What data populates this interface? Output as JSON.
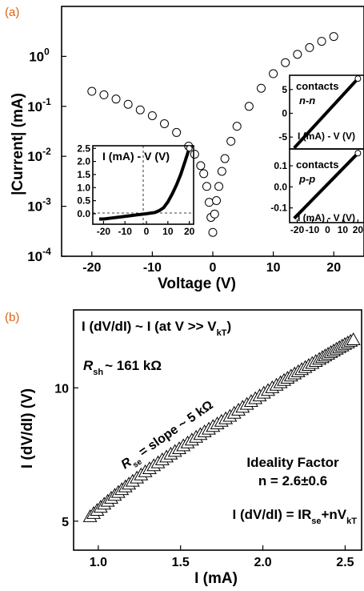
{
  "chart_data": [
    {
      "id": "a",
      "panel_label": "(a)",
      "type": "scatter",
      "title": "",
      "xlabel": "Voltage (V)",
      "ylabel": "|Current| (mA)",
      "xlim": [
        -25,
        25
      ],
      "ylim": [
        0.0001,
        10
      ],
      "yscale": "log",
      "x_ticks": [
        "-20",
        "-10",
        "0",
        "10",
        "20"
      ],
      "y_ticks": [
        {
          "base": "10",
          "exp": "0"
        },
        {
          "base": "10",
          "exp": "-1"
        },
        {
          "base": "10",
          "exp": "-2"
        },
        {
          "base": "10",
          "exp": "-3"
        },
        {
          "base": "10",
          "exp": "-4"
        }
      ],
      "marker": "open-circle",
      "series": [
        {
          "x": [
            -20,
            -18,
            -16,
            -14,
            -12,
            -10,
            -8,
            -6,
            -4,
            -3,
            -2,
            -1.5,
            -1,
            -0.6,
            -0.3,
            0,
            0.3,
            0.6,
            1,
            1.5,
            2,
            3,
            4,
            6,
            8,
            10,
            12,
            14,
            16,
            18,
            20
          ],
          "y": [
            0.2,
            0.17,
            0.14,
            0.11,
            0.085,
            0.065,
            0.045,
            0.03,
            0.016,
            0.011,
            0.0065,
            0.0045,
            0.0025,
            0.0012,
            0.0006,
            0.0003,
            0.0007,
            0.0013,
            0.0025,
            0.005,
            0.009,
            0.02,
            0.04,
            0.1,
            0.23,
            0.45,
            0.75,
            1.1,
            1.5,
            2.0,
            2.5
          ]
        }
      ]
    },
    {
      "id": "a-inset-main",
      "type": "line",
      "annotation": "I (mA) - V (V)",
      "xlim": [
        -25,
        22
      ],
      "ylim": [
        -0.4,
        2.6
      ],
      "x_ticks": [
        "-20",
        "-10",
        "0",
        "10",
        "20"
      ],
      "y_ticks": [
        "2.5",
        "2.0",
        "1.5",
        "1.0",
        "0.5",
        "0.0"
      ],
      "series": [
        {
          "x": [
            -22,
            -20,
            -16,
            -12,
            -8,
            -4,
            0,
            4,
            6,
            8,
            10,
            12,
            14,
            16,
            18,
            20
          ],
          "y": [
            -0.2,
            -0.2,
            -0.16,
            -0.12,
            -0.08,
            -0.04,
            0.0,
            0.05,
            0.12,
            0.23,
            0.45,
            0.75,
            1.1,
            1.5,
            2.0,
            2.5
          ]
        }
      ]
    },
    {
      "id": "a-inset-nn",
      "type": "line",
      "annotation": [
        "contacts",
        "n-n",
        "I (mA) - V (V)"
      ],
      "xlim": [
        -25,
        24
      ],
      "ylim": [
        -7.5,
        8
      ],
      "y_ticks": [
        "5",
        "0",
        "-5"
      ],
      "series": [
        {
          "x": [
            -22,
            20
          ],
          "y": [
            -7.3,
            7.3
          ]
        }
      ]
    },
    {
      "id": "a-inset-pp",
      "type": "line",
      "annotation": [
        "contacts",
        "p-p",
        "I (mA) - V (V)"
      ],
      "xlim": [
        -25,
        24
      ],
      "ylim": [
        -0.17,
        0.18
      ],
      "x_ticks": [
        "-20",
        "-10",
        "0",
        "10",
        "20"
      ],
      "y_ticks": [
        "0.1",
        "0.0",
        "-0.1"
      ],
      "series": [
        {
          "x": [
            -22,
            20
          ],
          "y": [
            -0.15,
            0.16
          ]
        }
      ]
    },
    {
      "id": "b",
      "panel_label": "(b)",
      "type": "scatter",
      "xlabel": "I (mA)",
      "ylabel": "I (dV/dI) (V)",
      "xlim": [
        0.85,
        2.6
      ],
      "ylim": [
        4.3,
        15
      ],
      "yscale": "log",
      "x_ticks": [
        "1.0",
        "1.5",
        "2.0",
        "2.5"
      ],
      "y_ticks": [
        "10",
        "5"
      ],
      "marker": "open-triangle",
      "annotations": {
        "line1": "I (dV/dI) ~ I (at V >> V",
        "line1_sub": "kT",
        "rsh": "R",
        "rsh_sub": "sh",
        "rsh_value": "~ 161 kΩ",
        "rse": "R",
        "rse_sub": "se",
        "rse_rest": " = slope ~ 5 kΩ",
        "ideality_1": "Ideality Factor",
        "ideality_2": "n = 2.6±0.6",
        "formula_a": "I (dV/dI) = IR",
        "formula_sub1": "se",
        "formula_b": "+nV",
        "formula_sub2": "kT"
      },
      "series": [
        {
          "x": [
            0.95,
            1.2,
            1.5,
            1.8,
            2.1,
            2.35,
            2.55
          ],
          "y": [
            5.1,
            6.1,
            7.3,
            8.6,
            10.2,
            11.6,
            12.8
          ]
        }
      ]
    }
  ]
}
